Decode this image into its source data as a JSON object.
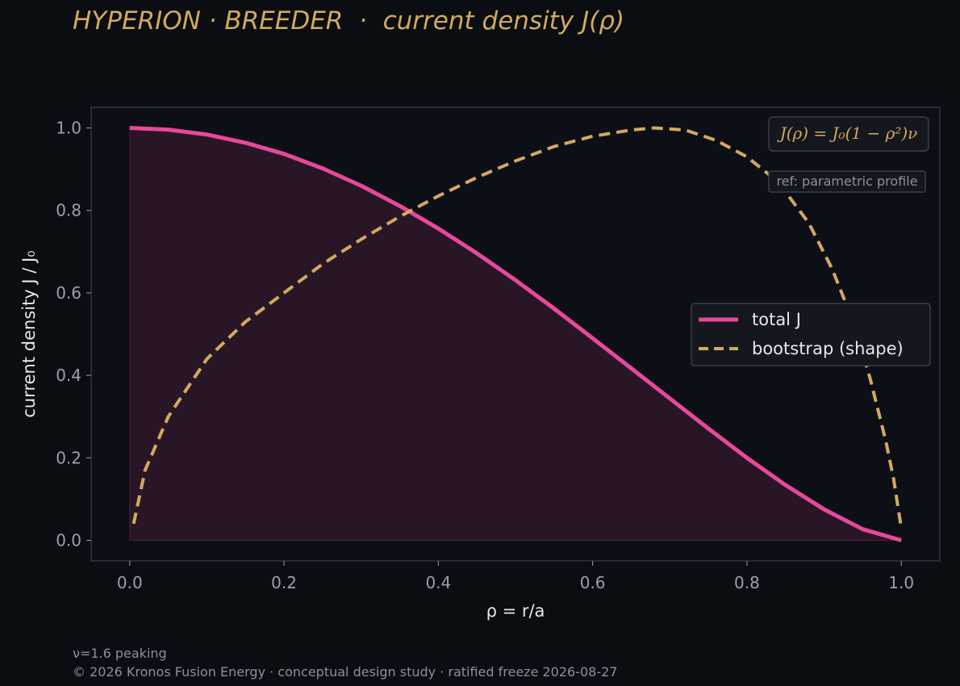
{
  "title": "HYPERION · BREEDER  ·  current density J(ρ)",
  "footer": {
    "note": "ν=1.6 peaking",
    "copyright": "© 2026 Kronos Fusion Energy · conceptual design study · ratified freeze 2026-08-27"
  },
  "colors": {
    "background": "#0a0d12",
    "plot_background": "#0c0f16",
    "total": "#e8489b",
    "bootstrap": "#d2a95e",
    "title": "#d2a95e",
    "tick_text": "#9aa1ab",
    "label_text": "#e8e8ea"
  },
  "chart_data": {
    "type": "line",
    "xlabel": "ρ = r/a",
    "ylabel": "current density J / J₀",
    "xlim": [
      -0.05,
      1.05
    ],
    "ylim": [
      -0.05,
      1.05
    ],
    "xticks": [
      "0.0",
      "0.2",
      "0.4",
      "0.6",
      "0.8",
      "1.0"
    ],
    "yticks": [
      "0.0",
      "0.2",
      "0.4",
      "0.6",
      "0.8",
      "1.0"
    ],
    "grid": false,
    "legend_position": "center-right",
    "formula_label": "J(ρ) = J₀(1 − ρ²)ν",
    "ref_label": "ref: parametric profile",
    "series": [
      {
        "name": "total J",
        "style": "solid",
        "fill_to_zero": true,
        "x": [
          0.0,
          0.05,
          0.1,
          0.15,
          0.2,
          0.25,
          0.3,
          0.35,
          0.4,
          0.45,
          0.5,
          0.55,
          0.6,
          0.65,
          0.7,
          0.75,
          0.8,
          0.85,
          0.9,
          0.95,
          1.0
        ],
        "y": [
          1.0,
          0.996,
          0.984,
          0.964,
          0.937,
          0.902,
          0.86,
          0.811,
          0.756,
          0.696,
          0.631,
          0.562,
          0.49,
          0.417,
          0.344,
          0.271,
          0.2,
          0.134,
          0.075,
          0.027,
          0.0
        ]
      },
      {
        "name": "bootstrap (shape)",
        "style": "dashed",
        "x": [
          0.005,
          0.02,
          0.05,
          0.1,
          0.15,
          0.2,
          0.25,
          0.3,
          0.35,
          0.4,
          0.45,
          0.5,
          0.55,
          0.6,
          0.65,
          0.68,
          0.72,
          0.76,
          0.8,
          0.84,
          0.88,
          0.91,
          0.94,
          0.96,
          0.98,
          0.99,
          1.0
        ],
        "y": [
          0.04,
          0.17,
          0.3,
          0.44,
          0.53,
          0.6,
          0.67,
          0.73,
          0.785,
          0.835,
          0.88,
          0.92,
          0.955,
          0.98,
          0.995,
          1.0,
          0.995,
          0.97,
          0.93,
          0.87,
          0.77,
          0.66,
          0.52,
          0.39,
          0.24,
          0.15,
          0.03
        ]
      }
    ]
  }
}
